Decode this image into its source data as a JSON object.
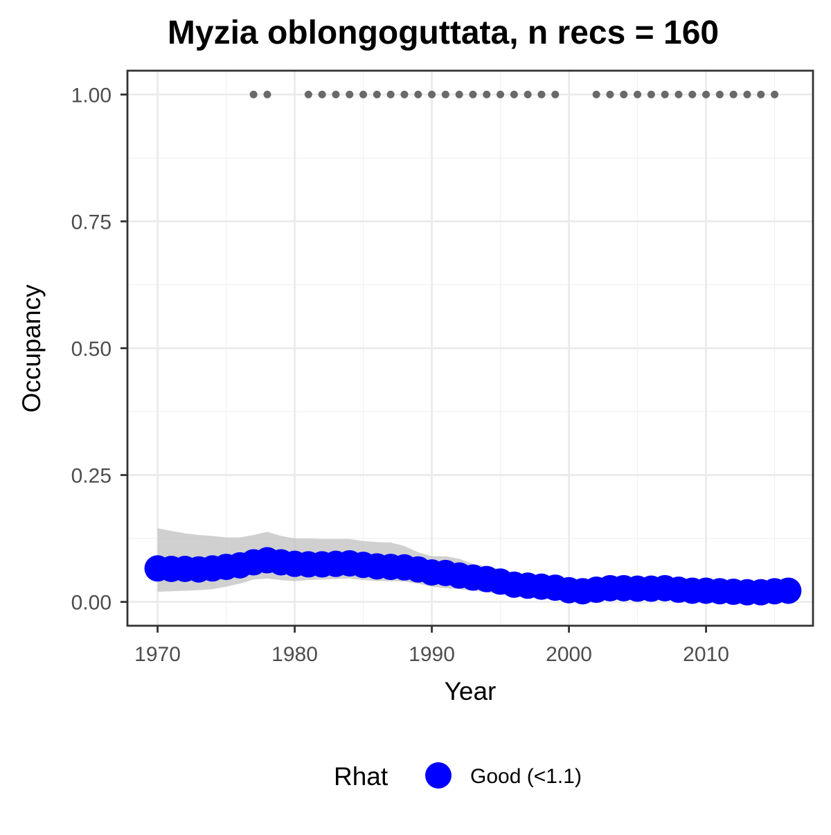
{
  "chart_data": {
    "type": "line",
    "title": "Myzia oblongoguttata, n recs = 160",
    "xlabel": "Year",
    "ylabel": "Occupancy",
    "xlim": [
      1967.8,
      2017.8
    ],
    "ylim": [
      -0.047,
      1.047
    ],
    "x_ticks": [
      1970,
      1980,
      1990,
      2000,
      2010
    ],
    "x_tick_labels": [
      "1970",
      "1980",
      "1990",
      "2000",
      "2010"
    ],
    "y_ticks": [
      0,
      0.25,
      0.5,
      0.75,
      1.0
    ],
    "y_tick_labels": [
      "0.00",
      "0.25",
      "0.50",
      "0.75",
      "1.00"
    ],
    "grid": true,
    "series": [
      {
        "name": "Good (<1.1)",
        "color": "#0000ff",
        "x": [
          1970,
          1971,
          1972,
          1973,
          1974,
          1975,
          1976,
          1977,
          1978,
          1979,
          1980,
          1981,
          1982,
          1983,
          1984,
          1985,
          1986,
          1987,
          1988,
          1989,
          1990,
          1991,
          1992,
          1993,
          1994,
          1995,
          1996,
          1997,
          1998,
          1999,
          2000,
          2001,
          2002,
          2003,
          2004,
          2005,
          2006,
          2007,
          2008,
          2009,
          2010,
          2011,
          2012,
          2013,
          2014,
          2015,
          2016
        ],
        "y": [
          0.066,
          0.065,
          0.065,
          0.064,
          0.066,
          0.069,
          0.072,
          0.078,
          0.082,
          0.078,
          0.075,
          0.074,
          0.074,
          0.075,
          0.076,
          0.073,
          0.07,
          0.069,
          0.068,
          0.064,
          0.058,
          0.057,
          0.052,
          0.048,
          0.045,
          0.04,
          0.034,
          0.032,
          0.03,
          0.028,
          0.023,
          0.021,
          0.024,
          0.027,
          0.027,
          0.026,
          0.026,
          0.027,
          0.024,
          0.022,
          0.022,
          0.021,
          0.02,
          0.019,
          0.019,
          0.021,
          0.022
        ],
        "lower": [
          0.02,
          0.021,
          0.022,
          0.023,
          0.025,
          0.03,
          0.036,
          0.044,
          0.046,
          0.043,
          0.041,
          0.043,
          0.044,
          0.045,
          0.046,
          0.043,
          0.041,
          0.041,
          0.04,
          0.036,
          0.03,
          0.027,
          0.025,
          0.022,
          0.019,
          0.015,
          0.011,
          0.01,
          0.009,
          0.008,
          0.006,
          0.006,
          0.008,
          0.009,
          0.009,
          0.009,
          0.009,
          0.009,
          0.008,
          0.007,
          0.007,
          0.007,
          0.006,
          0.006,
          0.006,
          0.007,
          0.007
        ],
        "upper": [
          0.145,
          0.14,
          0.135,
          0.132,
          0.13,
          0.127,
          0.127,
          0.132,
          0.138,
          0.13,
          0.125,
          0.125,
          0.124,
          0.124,
          0.124,
          0.12,
          0.118,
          0.117,
          0.11,
          0.098,
          0.09,
          0.09,
          0.085,
          0.075,
          0.07,
          0.065,
          0.055,
          0.052,
          0.05,
          0.047,
          0.04,
          0.037,
          0.041,
          0.046,
          0.047,
          0.046,
          0.046,
          0.047,
          0.043,
          0.04,
          0.04,
          0.039,
          0.037,
          0.036,
          0.035,
          0.037,
          0.038
        ]
      }
    ],
    "records": {
      "y": 1.0,
      "color": "#696969",
      "years": [
        1977,
        1978,
        1981,
        1982,
        1983,
        1984,
        1985,
        1986,
        1987,
        1988,
        1989,
        1990,
        1991,
        1992,
        1993,
        1994,
        1995,
        1996,
        1997,
        1998,
        1999,
        2002,
        2003,
        2004,
        2005,
        2006,
        2007,
        2008,
        2009,
        2010,
        2011,
        2012,
        2013,
        2014,
        2015
      ]
    },
    "ribbon_color": "#bebebe",
    "legend": {
      "title": "Rhat",
      "position": "bottom",
      "entries": [
        {
          "label": "Good (<1.1)",
          "color": "#0000ff"
        }
      ]
    }
  }
}
